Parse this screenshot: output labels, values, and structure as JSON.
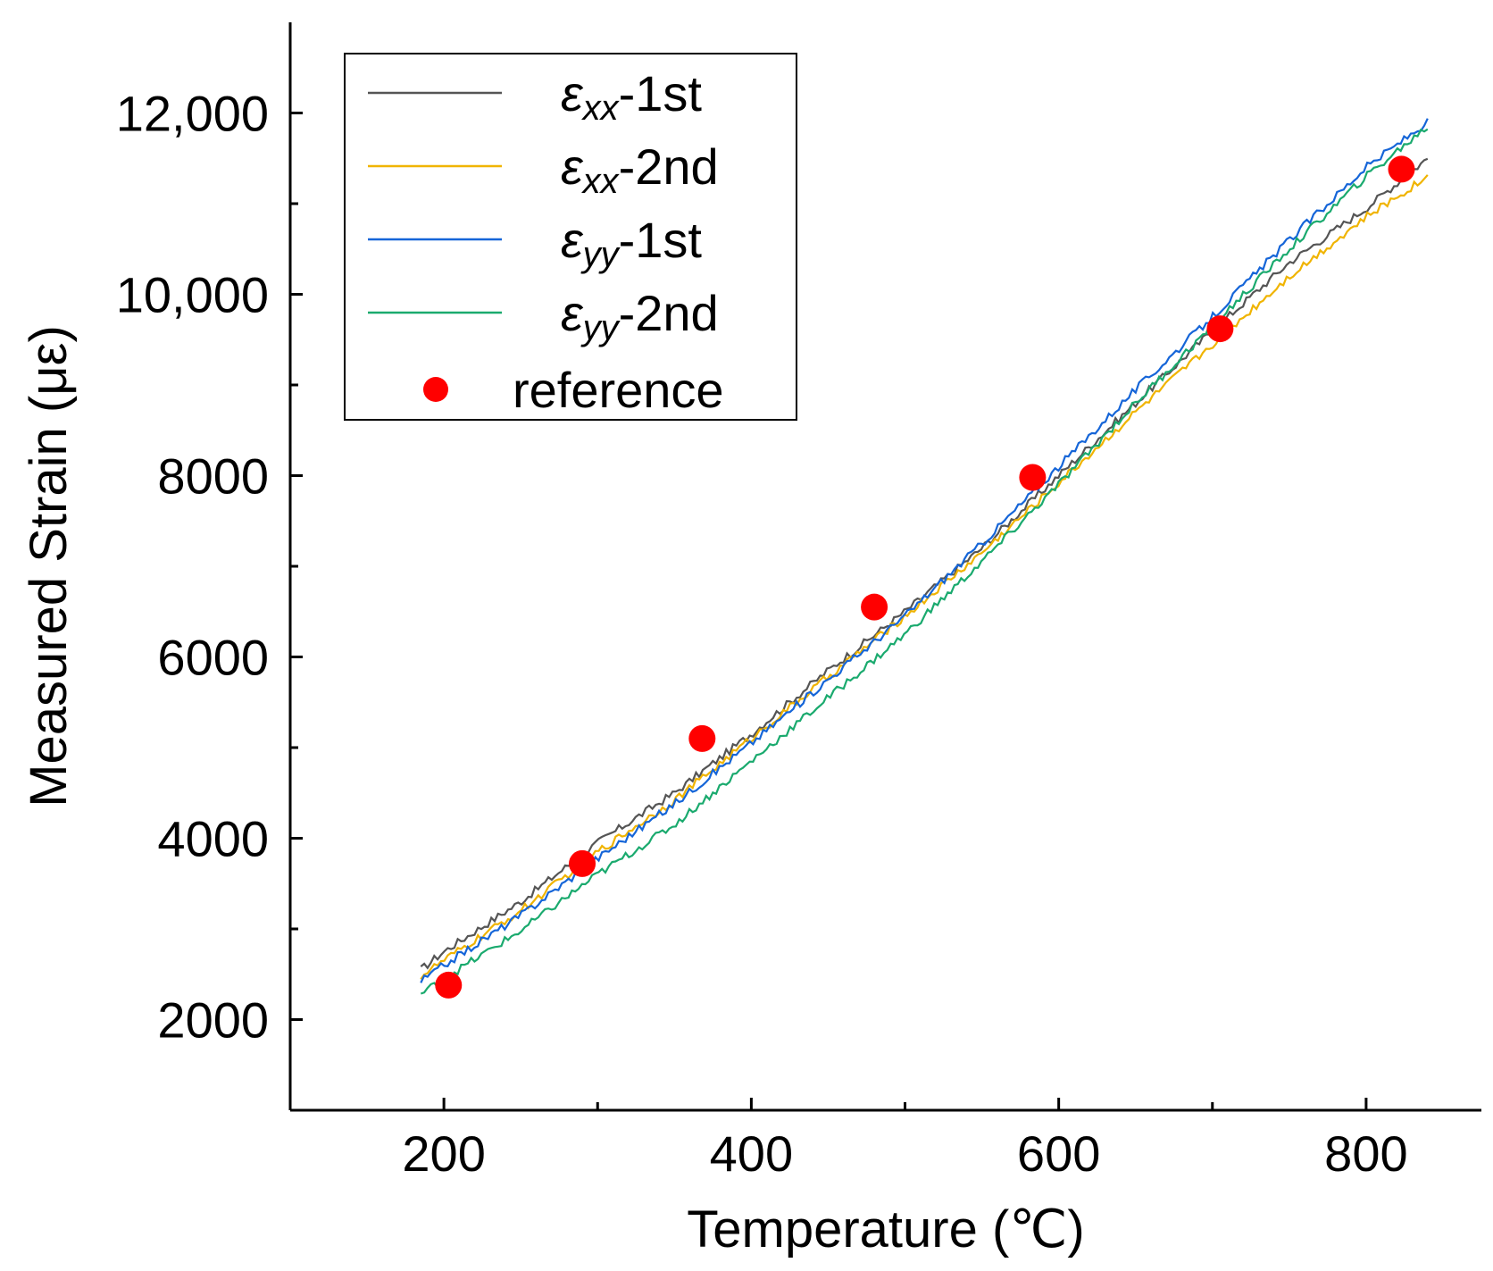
{
  "chart_data": {
    "type": "line",
    "title": "",
    "xlabel": "Temperature (℃)",
    "ylabel": "Measured Strain (με)",
    "xlim": [
      100,
      875
    ],
    "ylim": [
      1000,
      13000
    ],
    "x_ticks": [
      200,
      400,
      600,
      800
    ],
    "x_tick_labels": [
      "200",
      "400",
      "600",
      "800"
    ],
    "x_minor_ticks": [
      300,
      500,
      700
    ],
    "y_ticks": [
      2000,
      4000,
      6000,
      8000,
      10000,
      12000
    ],
    "y_tick_labels": [
      "2000",
      "4000",
      "6000",
      "8000",
      "10,000",
      "12,000"
    ],
    "y_minor_ticks": [
      3000,
      5000,
      7000,
      9000,
      11000
    ],
    "grid": false,
    "legend_position": "top-left",
    "series": [
      {
        "name": "εxx-1st",
        "symbol": "ε",
        "subscript": "xx",
        "suffix": "-1st",
        "color": "#555555",
        "style": "line",
        "x": [
          185,
          200,
          250,
          300,
          350,
          400,
          450,
          500,
          550,
          600,
          650,
          700,
          750,
          800,
          840
        ],
        "y": [
          2550,
          2750,
          3300,
          3950,
          4500,
          5150,
          5850,
          6500,
          7200,
          8000,
          8800,
          9600,
          10350,
          10950,
          11500
        ]
      },
      {
        "name": "εxx-2nd",
        "symbol": "ε",
        "subscript": "xx",
        "suffix": "-2nd",
        "color": "#f0b400",
        "style": "line",
        "x": [
          185,
          200,
          250,
          300,
          350,
          400,
          450,
          500,
          550,
          600,
          650,
          700,
          750,
          800,
          840
        ],
        "y": [
          2480,
          2650,
          3200,
          3850,
          4420,
          5100,
          5780,
          6450,
          7150,
          7920,
          8700,
          9450,
          10200,
          10850,
          11300
        ]
      },
      {
        "name": "εyy-1st",
        "symbol": "ε",
        "subscript": "yy",
        "suffix": "-1st",
        "color": "#1565d8",
        "style": "line",
        "x": [
          185,
          200,
          250,
          300,
          350,
          400,
          450,
          500,
          550,
          600,
          650,
          700,
          750,
          800,
          840
        ],
        "y": [
          2420,
          2600,
          3150,
          3780,
          4380,
          5050,
          5750,
          6450,
          7250,
          8100,
          8950,
          9750,
          10600,
          11400,
          11900
        ]
      },
      {
        "name": "εyy-2nd",
        "symbol": "ε",
        "subscript": "yy",
        "suffix": "-2nd",
        "color": "#1aaa6e",
        "style": "line",
        "x": [
          185,
          200,
          250,
          300,
          350,
          400,
          450,
          500,
          550,
          600,
          650,
          700,
          750,
          800,
          840
        ],
        "y": [
          2280,
          2450,
          2980,
          3600,
          4150,
          4850,
          5550,
          6250,
          7050,
          7900,
          8800,
          9650,
          10500,
          11300,
          11850
        ]
      },
      {
        "name": "reference",
        "color": "#ff0000",
        "style": "scatter",
        "x": [
          203,
          290,
          368,
          480,
          583,
          705,
          823
        ],
        "y": [
          2380,
          3720,
          5100,
          6550,
          7980,
          9620,
          11380
        ]
      }
    ]
  }
}
